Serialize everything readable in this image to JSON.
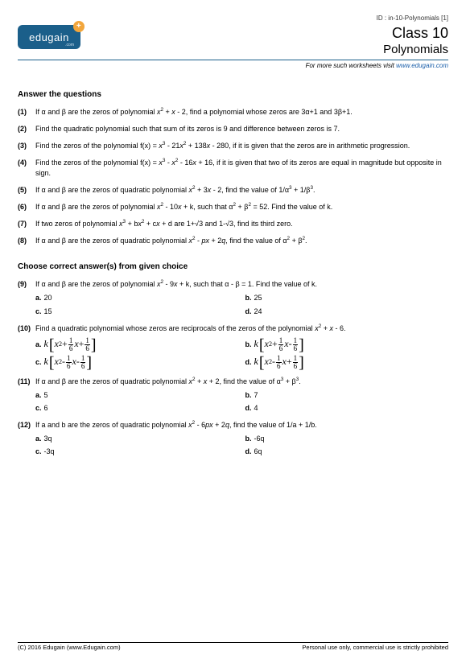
{
  "id_line": "ID : in-10-Polynomials [1]",
  "logo_text": "edugain",
  "logo_plus": "+",
  "logo_dotcom": ".com",
  "class_label": "Class 10",
  "topic": "Polynomials",
  "visit_prefix": "For more such worksheets visit ",
  "visit_link": "www.edugain.com",
  "section1": "Answer the questions",
  "section2": "Choose correct answer(s) from given choice",
  "questions_a": [
    {
      "n": "(1)",
      "html": "If α and β are the zeros of polynomial <span class='it'>x</span><sup>2</sup> + <span class='it'>x</span> - 2, find a polynomial whose zeros are 3α+1 and 3β+1."
    },
    {
      "n": "(2)",
      "html": "Find the quadratic polynomial such that sum of its zeros is 9 and difference between zeros is 7."
    },
    {
      "n": "(3)",
      "html": "Find the zeros of the polynomial f(x) = <span class='it'>x</span><sup>3</sup> - 21<span class='it'>x</span><sup>2</sup> + 138<span class='it'>x</span> - 280, if it is given that the zeros are in arithmetic progression."
    },
    {
      "n": "(4)",
      "html": "Find the zeros of the polynomial f(x) = <span class='it'>x</span><sup>3</sup> - <span class='it'>x</span><sup>2</sup> - 16<span class='it'>x</span> + 16, if it is given that two of its zeros are equal in magnitude but opposite in sign."
    },
    {
      "n": "(5)",
      "html": "If α and β are the zeros of quadratic polynomial <span class='it'>x</span><sup>2</sup> + 3<span class='it'>x</span> - 2, find the value of 1/α<sup>3</sup> + 1/β<sup>3</sup>."
    },
    {
      "n": "(6)",
      "html": "If α and β are the zeros of polynomial <span class='it'>x</span><sup>2</sup> - 10<span class='it'>x</span> + k, such that α<sup>2</sup> + β<sup>2</sup> = 52. Find the value of k."
    },
    {
      "n": "(7)",
      "html": "If two zeros of polynomial <span class='it'>x</span><sup>3</sup> + b<span class='it'>x</span><sup>2</sup> + c<span class='it'>x</span> + d are 1+√3 and 1-√3, find its third zero."
    },
    {
      "n": "(8)",
      "html": "If α and β are the zeros of quadratic polynomial <span class='it'>x</span><sup>2</sup> - <span class='it'>p</span><span class='it'>x</span> + 2<span class='it'>q</span>, find the value of α<sup>2</sup> + β<sup>2</sup>."
    }
  ],
  "mcq": [
    {
      "n": "(9)",
      "html": "If α and β are the zeros of polynomial <span class='it'>x</span><sup>2</sup> - 9<span class='it'>x</span> + k, such that α - β = 1. Find the value of k.",
      "opts": [
        {
          "l": "a.",
          "t": "20"
        },
        {
          "l": "b.",
          "t": "25"
        },
        {
          "l": "c.",
          "t": "15"
        },
        {
          "l": "d.",
          "t": "24"
        }
      ],
      "type": "plain"
    },
    {
      "n": "(10)",
      "html": "Find a quadratic polynomial whose zeros are reciprocals of the zeros of the polynomial <span class='it'>x</span><sup>2</sup> + <span class='it'>x</span> - 6.",
      "type": "poly",
      "polys": [
        {
          "l": "a.",
          "sA": "+",
          "sB": "+"
        },
        {
          "l": "b.",
          "sA": "+",
          "sB": "-"
        },
        {
          "l": "c.",
          "sA": "-",
          "sB": "-"
        },
        {
          "l": "d.",
          "sA": "-",
          "sB": "+"
        }
      ]
    },
    {
      "n": "(11)",
      "html": "If α and β are the zeros of quadratic polynomial <span class='it'>x</span><sup>2</sup> + <span class='it'>x</span> + 2, find the value of α<sup>3</sup> + β<sup>3</sup>.",
      "opts": [
        {
          "l": "a.",
          "t": "5"
        },
        {
          "l": "b.",
          "t": "7"
        },
        {
          "l": "c.",
          "t": "6"
        },
        {
          "l": "d.",
          "t": "4"
        }
      ],
      "type": "plain"
    },
    {
      "n": "(12)",
      "html": "If a and b are the zeros of quadratic polynomial <span class='it'>x</span><sup>2</sup> - 6<span class='it'>p</span><span class='it'>x</span> + 2<span class='it'>q</span>, find the value of 1/a + 1/b.",
      "opts": [
        {
          "l": "a.",
          "t": "3q"
        },
        {
          "l": "b.",
          "t": "-6q"
        },
        {
          "l": "c.",
          "t": "-3q"
        },
        {
          "l": "d.",
          "t": "6q"
        }
      ],
      "type": "plain"
    }
  ],
  "footer_left": "(C) 2016 Edugain (www.Edugain.com)",
  "footer_right": "Personal use only, commercial use is strictly prohibited",
  "colors": {
    "brand": "#1b5f8a",
    "accent": "#f2a63c",
    "link": "#1b5faa",
    "text": "#000",
    "bg": "#fff"
  }
}
